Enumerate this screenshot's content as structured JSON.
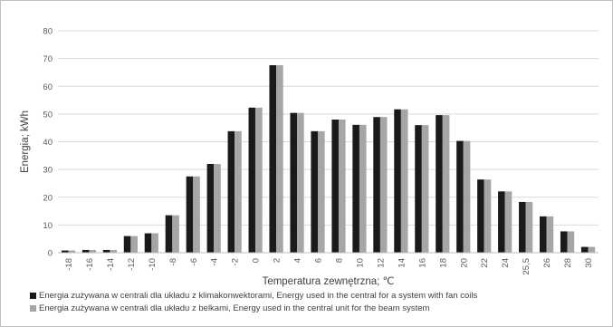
{
  "chart_data": {
    "type": "bar",
    "xlabel": "Temperatura zewnętrzna; ℃",
    "ylabel": "Energia; kWh",
    "ylim": [
      0,
      80
    ],
    "yticks": [
      0,
      10,
      20,
      30,
      40,
      50,
      60,
      70,
      80
    ],
    "grid": true,
    "legend_position": "bottom",
    "categories": [
      "-18",
      "-16",
      "-14",
      "-12",
      "-10",
      "-8",
      "-6",
      "-4",
      "-2",
      "0",
      "2",
      "4",
      "6",
      "8",
      "10",
      "12",
      "14",
      "16",
      "18",
      "20",
      "22",
      "24",
      "25,5",
      "26",
      "28",
      "30"
    ],
    "series": [
      {
        "name": "Energia zużywana  w centrali dla układu z klimakonwektorami, Energy used in the central  for a system with fan coils",
        "color": "#1a1a1a",
        "values": [
          0.8,
          1.0,
          1.0,
          6.0,
          7.0,
          13.5,
          27.5,
          32.0,
          43.8,
          52.3,
          67.6,
          50.4,
          43.8,
          48.0,
          46.1,
          48.9,
          51.7,
          46.0,
          49.6,
          40.3,
          26.4,
          22.1,
          18.3,
          13.1,
          7.7,
          2.1
        ]
      },
      {
        "name": "Energia zużywana w centrali dla układu z belkami, Energy used in the central unit for the beam system",
        "color": "#a6a6a6",
        "values": [
          0.8,
          1.0,
          1.0,
          6.0,
          7.0,
          13.5,
          27.5,
          32.0,
          43.8,
          52.3,
          67.6,
          50.4,
          43.8,
          48.0,
          46.1,
          48.9,
          51.7,
          46.0,
          49.6,
          40.3,
          26.4,
          22.1,
          18.3,
          13.1,
          7.7,
          2.1
        ]
      }
    ]
  }
}
